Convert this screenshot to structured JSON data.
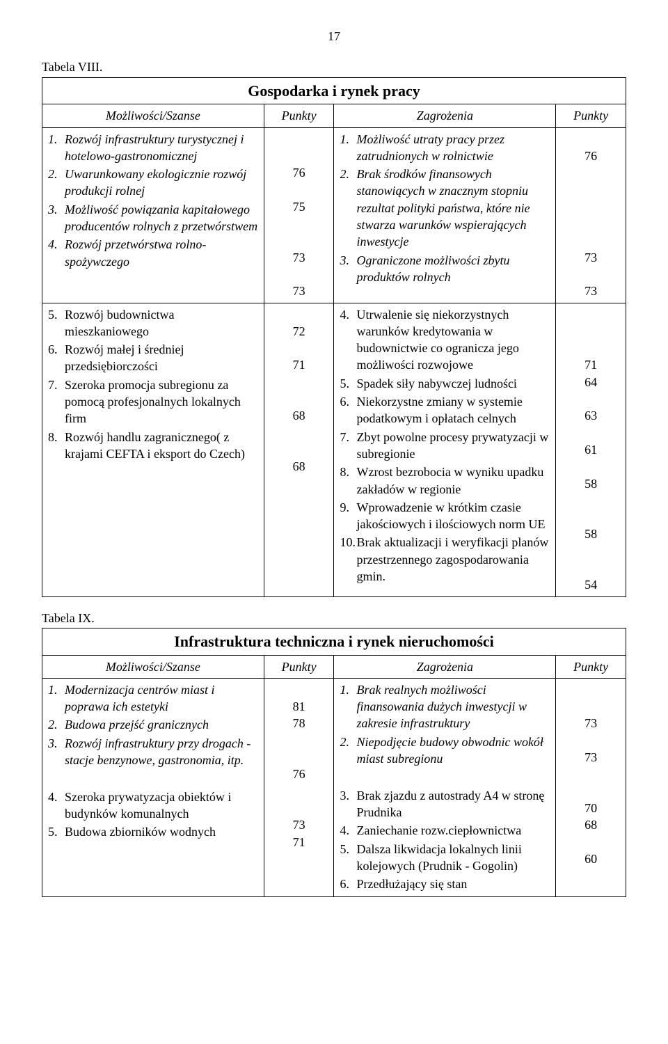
{
  "page_number": "17",
  "table8": {
    "label": "Tabela VIII.",
    "title": "Gospodarka i rynek pracy",
    "headers": {
      "opportunities": "Możliwości/Szanse",
      "points1": "Punkty",
      "threats": "Zagrożenia",
      "points2": "Punkty"
    },
    "row1": {
      "opp": [
        {
          "n": "1.",
          "t": "Rozwój infrastruktury turystycznej i hotelowo-gastronomicznej",
          "italic": true
        },
        {
          "n": "2.",
          "t": "Uwarunkowany ekologicznie rozwój  produkcji rolnej",
          "italic": true
        },
        {
          "n": "3.",
          "t": "Możliwość powiązania kapitałowego producentów rolnych z przetwórstwem",
          "italic": true
        },
        {
          "n": "4.",
          "t": "Rozwój przetwórstwa rolno-spożywczego",
          "italic": true
        }
      ],
      "opp_pts": [
        "",
        "",
        "76",
        "",
        "75",
        "",
        "",
        "73",
        "",
        "73"
      ],
      "thr": [
        {
          "n": "1.",
          "t": "Możliwość utraty pracy przez zatrudnionych w rolnictwie",
          "italic": true
        },
        {
          "n": "2.",
          "t": "Brak środków finansowych stanowiących w znacznym stopniu rezultat polityki państwa, które nie stwarza warunków wspierających inwestycje",
          "italic": true
        },
        {
          "n": "3.",
          "t": "Ograniczone możliwości zbytu produktów rolnych",
          "italic": true
        }
      ],
      "thr_pts": [
        "",
        "76",
        "",
        "",
        "",
        "",
        "",
        "73",
        "",
        "73"
      ]
    },
    "row2": {
      "opp": [
        {
          "n": "5.",
          "t": "Rozwój budownictwa mieszkaniowego",
          "italic": false
        },
        {
          "n": "6.",
          "t": "Rozwój małej i średniej przedsiębiorczości",
          "italic": false
        },
        {
          "n": "7.",
          "t": "Szeroka promocja subregionu za pomocą profesjonalnych lokalnych firm",
          "italic": false
        },
        {
          "n": "8.",
          "t": "Rozwój handlu zagranicznego( z krajami CEFTA i eksport do Czech)",
          "italic": false
        }
      ],
      "opp_pts": [
        "",
        "72",
        "",
        "71",
        "",
        "",
        "68",
        "",
        "",
        "68"
      ],
      "thr": [
        {
          "n": "4.",
          "t": "Utrwalenie się niekorzystnych warunków kredytowania w budownictwie co ogranicza jego możliwości rozwojowe",
          "italic": false
        },
        {
          "n": "5.",
          "t": "Spadek siły nabywczej ludności",
          "italic": false
        },
        {
          "n": "6.",
          "t": "Niekorzystne zmiany w systemie podatkowym i opłatach celnych",
          "italic": false
        },
        {
          "n": "7.",
          "t": "Zbyt powolne procesy prywatyzacji w subregionie",
          "italic": false
        },
        {
          "n": "8.",
          "t": "Wzrost bezrobocia w wyniku upadku zakładów w regionie",
          "italic": false
        },
        {
          "n": "9.",
          "t": "Wprowadzenie w krótkim czasie jakościowych i ilościowych norm UE",
          "italic": false
        },
        {
          "n": "10.",
          "t": "Brak aktualizacji i weryfikacji planów przestrzennego zagospodarowania gmin.",
          "italic": false
        }
      ],
      "thr_pts": [
        "",
        "",
        "",
        "71",
        "64",
        "",
        "63",
        "",
        "61",
        "",
        "58",
        "",
        "",
        "58",
        "",
        "",
        "54"
      ]
    }
  },
  "table9": {
    "label": "Tabela IX.",
    "title": "Infrastruktura techniczna i rynek nieruchomości",
    "headers": {
      "opportunities": "Możliwości/Szanse",
      "points1": "Punkty",
      "threats": "Zagrożenia",
      "points2": "Punkty"
    },
    "opp": [
      {
        "n": "1.",
        "t": "Modernizacja centrów  miast i poprawa ich estetyki",
        "italic": true
      },
      {
        "n": "2.",
        "t": "Budowa przejść granicznych",
        "italic": true
      },
      {
        "n": "3.",
        "t": "Rozwój infrastruktury przy drogach - stacje benzynowe, gastronomia, itp.",
        "italic": true
      },
      {
        "n": "",
        "t": "",
        "italic": false,
        "blank": true
      },
      {
        "n": "4.",
        "t": "Szeroka prywatyzacja obiektów i budynków komunalnych",
        "italic": false
      },
      {
        "n": "5.",
        "t": "Budowa zbiorników wodnych",
        "italic": false
      }
    ],
    "opp_pts": [
      "",
      "81",
      "78",
      "",
      "",
      "76",
      "",
      "",
      "73",
      "71"
    ],
    "thr": [
      {
        "n": "1.",
        "t": "Brak realnych możliwości finansowania dużych inwestycji w zakresie infrastruktury",
        "italic": true
      },
      {
        "n": "2.",
        "t": "Niepodjęcie budowy obwodnic wokół miast subregionu",
        "italic": true
      },
      {
        "n": "",
        "t": "",
        "italic": false,
        "blank": true
      },
      {
        "n": "3.",
        "t": "Brak zjazdu z autostrady A4 w stronę Prudnika",
        "italic": false
      },
      {
        "n": "4.",
        "t": "Zaniechanie rozw.ciepłownictwa",
        "italic": false
      },
      {
        "n": "5.",
        "t": "Dalsza likwidacja lokalnych linii kolejowych (Prudnik - Gogolin)",
        "italic": false
      },
      {
        "n": "6.",
        "t": "Przedłużający się stan",
        "italic": false
      }
    ],
    "thr_pts": [
      "",
      "",
      "73",
      "",
      "73",
      "",
      "",
      "70",
      "68",
      "",
      "60",
      ""
    ]
  }
}
